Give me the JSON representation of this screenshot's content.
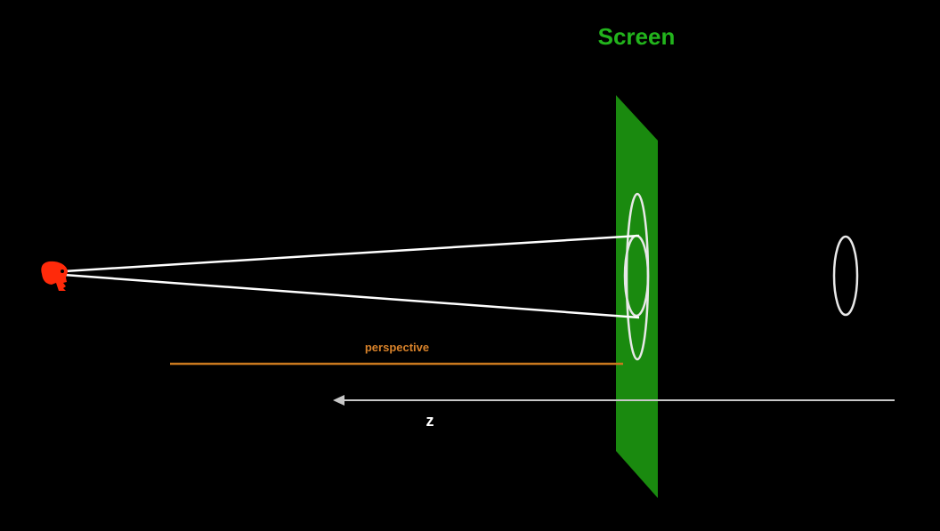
{
  "screen_label": "Screen",
  "perspective_label": "perspective",
  "axis_label": "z",
  "viewer_icon": "skull-icon",
  "colors": {
    "background": "#000000",
    "screen_fill": "#1a8a0f",
    "screen_label": "#22b41c",
    "viewer": "#ff2a0a",
    "rays": "#ffffff",
    "perspective": "#c8781e",
    "axis": "#c8c8c8",
    "ellipse": "#e8e8e8"
  }
}
